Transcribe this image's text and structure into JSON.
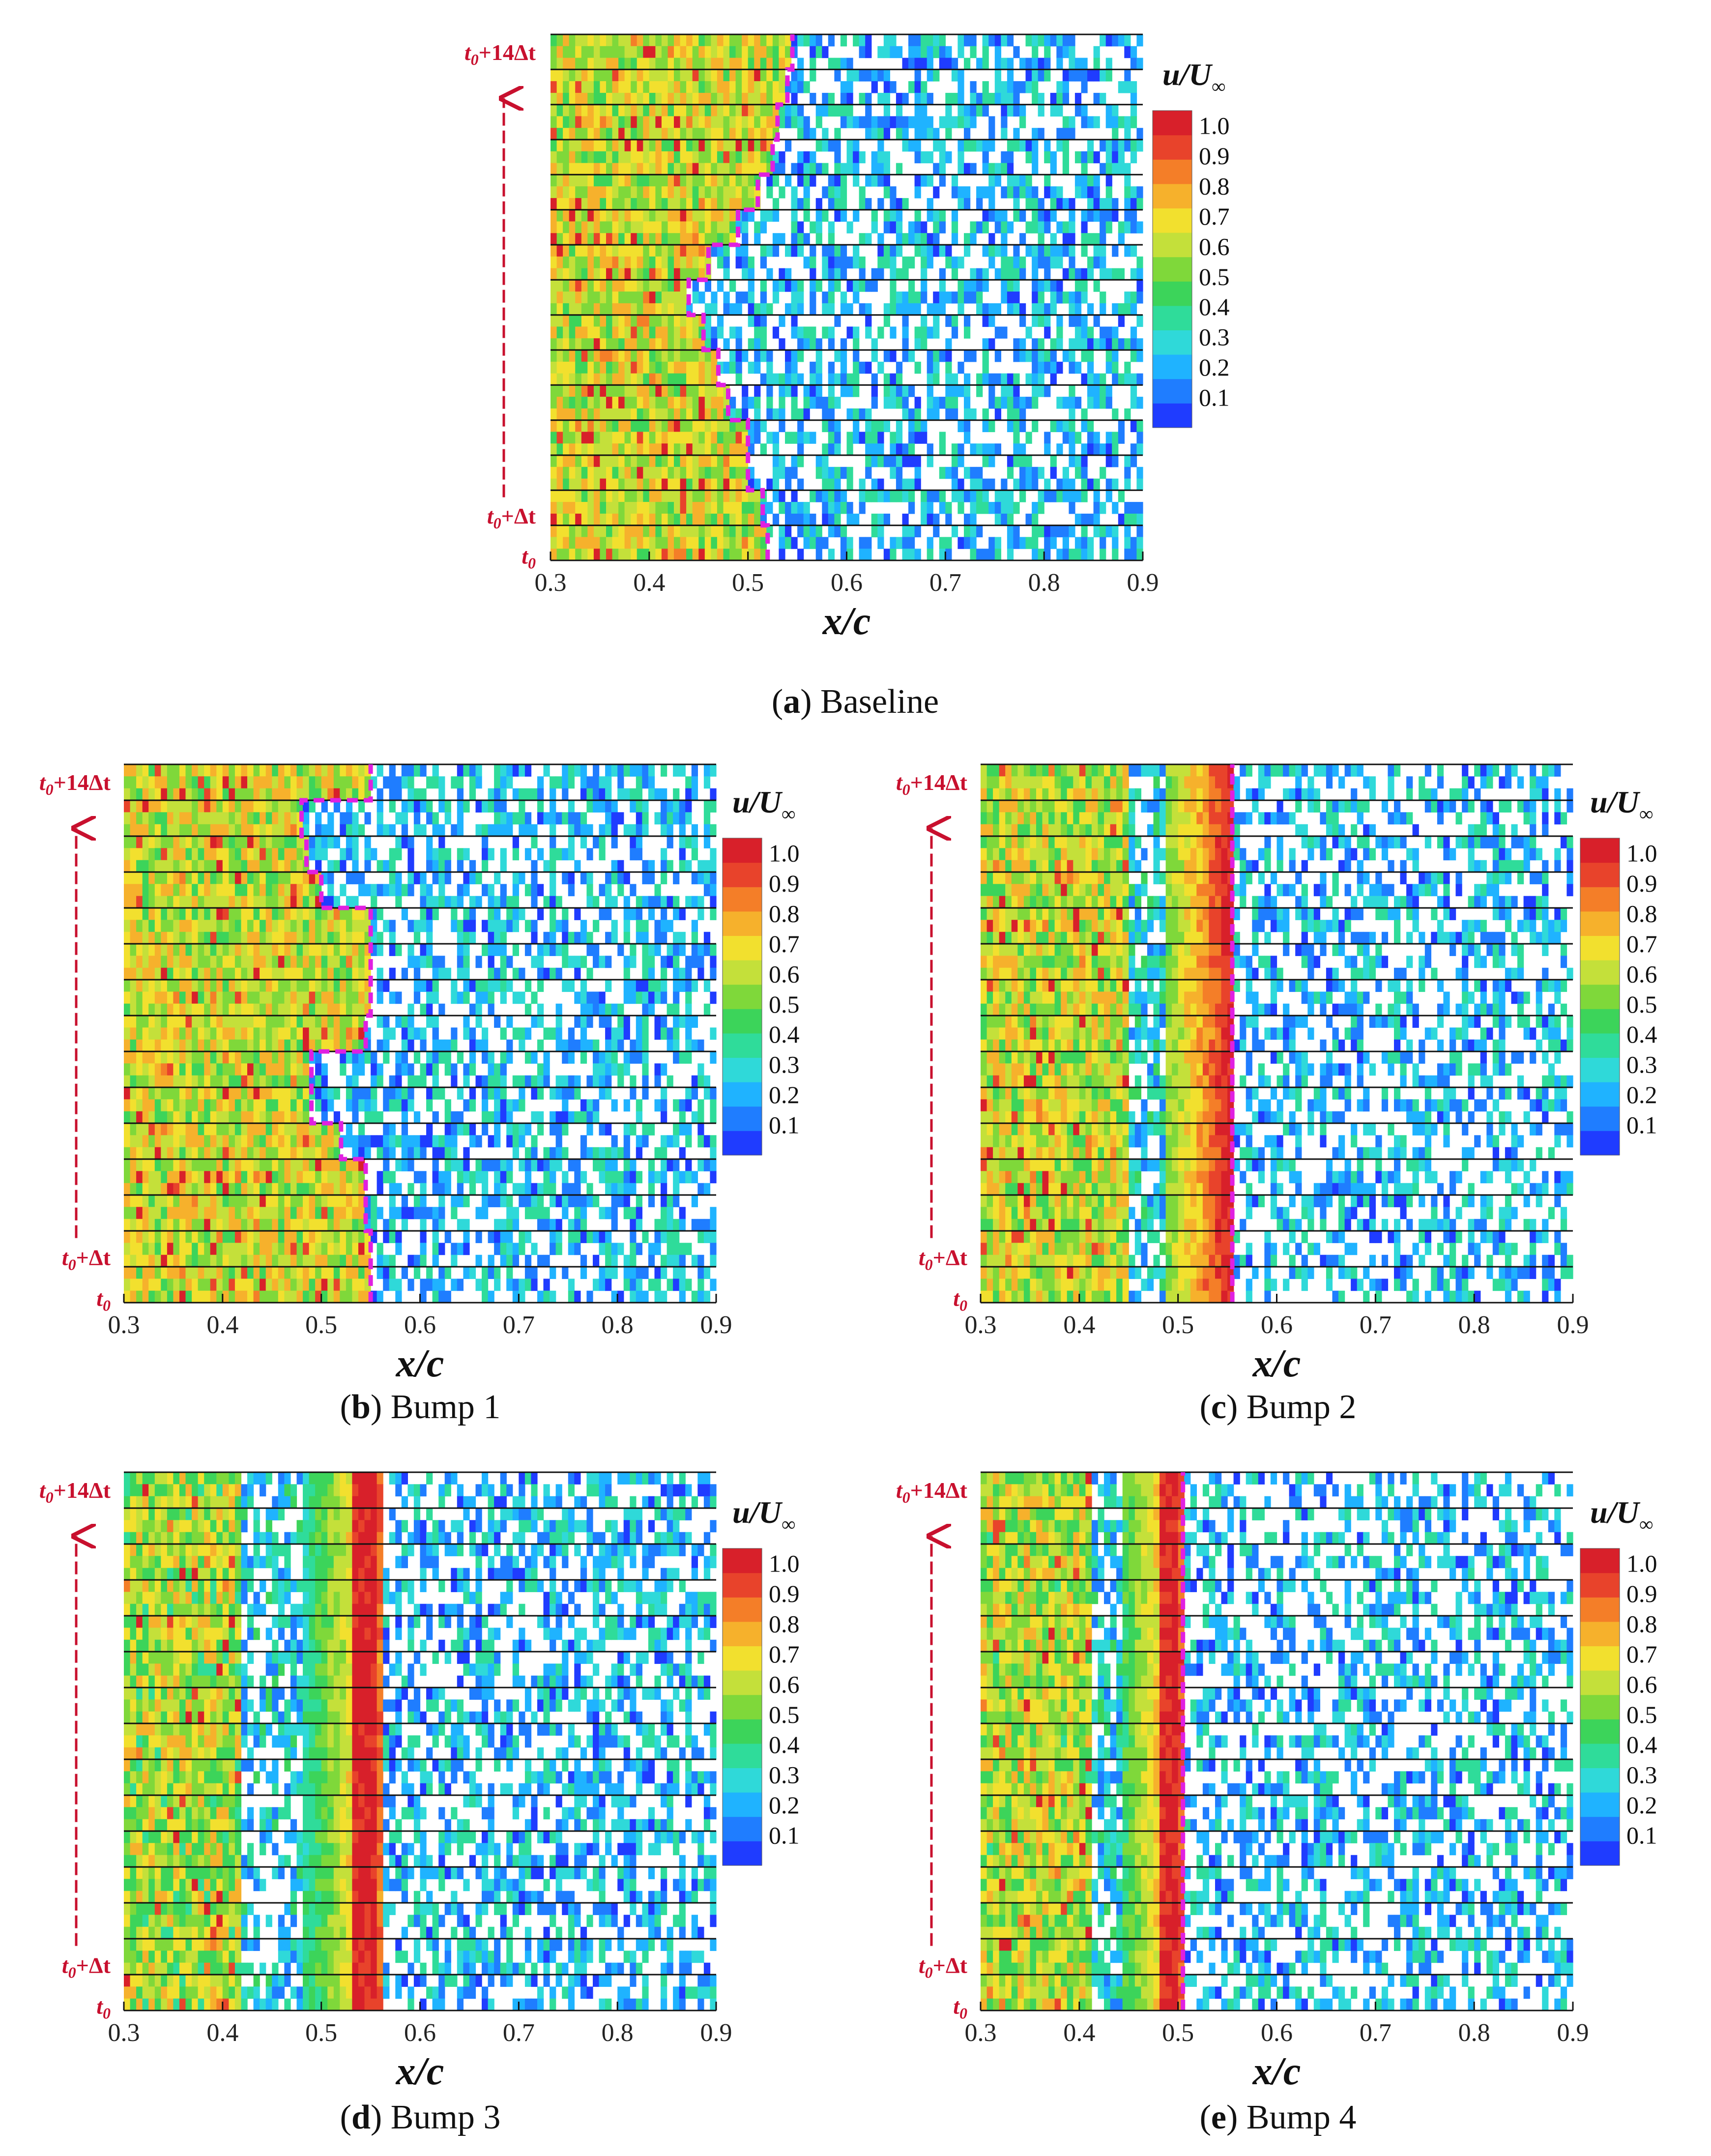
{
  "figure": {
    "panels": [
      {
        "id": "a",
        "letter": "a",
        "caption": "Baseline",
        "front": [
          0.52,
          0.515,
          0.5,
          0.5,
          0.48,
          0.47,
          0.455,
          0.44,
          0.46,
          0.49,
          0.51,
          0.525,
          0.53,
          0.54,
          0.545
        ]
      },
      {
        "id": "b",
        "letter": "b",
        "caption": "Bump 1",
        "front": [
          0.55,
          0.55,
          0.545,
          0.545,
          0.52,
          0.49,
          0.49,
          0.545,
          0.55,
          0.55,
          0.55,
          0.5,
          0.485,
          0.48,
          0.55
        ]
      },
      {
        "id": "c",
        "letter": "c",
        "caption": "Bump 2",
        "front": [
          0.555,
          0.555,
          0.555,
          0.555,
          0.555,
          0.555,
          0.555,
          0.555,
          0.555,
          0.555,
          0.555,
          0.555,
          0.555,
          0.555,
          0.555
        ]
      },
      {
        "id": "d",
        "letter": "d",
        "caption": "Bump 3",
        "front": null
      },
      {
        "id": "e",
        "letter": "e",
        "caption": "Bump 4",
        "front": [
          0.505,
          0.505,
          0.505,
          0.505,
          0.505,
          0.505,
          0.505,
          0.505,
          0.505,
          0.505,
          0.505,
          0.505,
          0.505,
          0.505,
          0.505
        ]
      }
    ]
  },
  "labels": {
    "t0_sub": "0",
    "t0_base": "t",
    "t_plus_1": "+Δt",
    "t_plus_14": "+14Δt",
    "colorbar_title": "u/U",
    "colorbar_sub": "∞",
    "xlabel": "x/c"
  },
  "colors": {
    "accent_red": "#c8102e",
    "front_magenta": "#e020e0",
    "colormap": [
      "#1f3cff",
      "#1f7dff",
      "#1fb3ff",
      "#2fd9d9",
      "#2fdc9a",
      "#3cd45a",
      "#7fd83a",
      "#c4e03a",
      "#f2e02e",
      "#f6b12c",
      "#f47e28",
      "#e8432b",
      "#d8202a"
    ]
  },
  "chart_data": [
    {
      "type": "heatmap",
      "panel": "a",
      "title": "(a) Baseline",
      "xlabel": "x/c",
      "xlim": [
        0.3,
        0.9
      ],
      "xticks": [
        "0.3",
        "0.4",
        "0.5",
        "0.6",
        "0.7",
        "0.8",
        "0.9"
      ],
      "colorbar": {
        "title": "u/U∞",
        "ticks": [
          "1.0",
          "0.9",
          "0.8",
          "0.7",
          "0.6",
          "0.5",
          "0.4",
          "0.3",
          "0.2",
          "0.1"
        ],
        "range": [
          0.0,
          1.05
        ]
      },
      "time_labels": [
        "t0",
        "t0+Δt",
        "t0+14Δt"
      ],
      "n_strips": 15,
      "separation_front_xc": [
        0.52,
        0.515,
        0.5,
        0.5,
        0.48,
        0.47,
        0.455,
        0.44,
        0.46,
        0.49,
        0.51,
        0.525,
        0.53,
        0.54,
        0.545
      ]
    },
    {
      "type": "heatmap",
      "panel": "b",
      "title": "(b) Bump 1",
      "xlabel": "x/c",
      "xlim": [
        0.3,
        0.9
      ],
      "xticks": [
        "0.3",
        "0.4",
        "0.5",
        "0.6",
        "0.7",
        "0.8",
        "0.9"
      ],
      "colorbar": {
        "title": "u/U∞",
        "ticks": [
          "1.0",
          "0.9",
          "0.8",
          "0.7",
          "0.6",
          "0.5",
          "0.4",
          "0.3",
          "0.2",
          "0.1"
        ],
        "range": [
          0.0,
          1.05
        ]
      },
      "time_labels": [
        "t0",
        "t0+Δt",
        "t0+14Δt"
      ],
      "n_strips": 15,
      "separation_front_xc": [
        0.55,
        0.55,
        0.545,
        0.545,
        0.52,
        0.49,
        0.49,
        0.545,
        0.55,
        0.55,
        0.55,
        0.5,
        0.485,
        0.48,
        0.55
      ]
    },
    {
      "type": "heatmap",
      "panel": "c",
      "title": "(c) Bump 2",
      "xlabel": "x/c",
      "xlim": [
        0.3,
        0.9
      ],
      "xticks": [
        "0.3",
        "0.4",
        "0.5",
        "0.6",
        "0.7",
        "0.8",
        "0.9"
      ],
      "colorbar": {
        "title": "u/U∞",
        "ticks": [
          "1.0",
          "0.9",
          "0.8",
          "0.7",
          "0.6",
          "0.5",
          "0.4",
          "0.3",
          "0.2",
          "0.1"
        ],
        "range": [
          0.0,
          1.05
        ]
      },
      "time_labels": [
        "t0",
        "t0+Δt",
        "t0+14Δt"
      ],
      "n_strips": 15,
      "separation_front_xc": 0.555
    },
    {
      "type": "heatmap",
      "panel": "d",
      "title": "(d) Bump 3",
      "xlabel": "x/c",
      "xlim": [
        0.3,
        0.9
      ],
      "xticks": [
        "0.3",
        "0.4",
        "0.5",
        "0.6",
        "0.7",
        "0.8",
        "0.9"
      ],
      "colorbar": {
        "title": "u/U∞",
        "ticks": [
          "1.0",
          "0.9",
          "0.8",
          "0.7",
          "0.6",
          "0.5",
          "0.4",
          "0.3",
          "0.2",
          "0.1"
        ],
        "range": [
          0.0,
          1.05
        ]
      },
      "time_labels": [
        "t0",
        "t0+Δt",
        "t0+14Δt"
      ],
      "n_strips": 15,
      "high_speed_band_xc": 0.55
    },
    {
      "type": "heatmap",
      "panel": "e",
      "title": "(e) Bump 4",
      "xlabel": "x/c",
      "xlim": [
        0.3,
        0.9
      ],
      "xticks": [
        "0.3",
        "0.4",
        "0.5",
        "0.6",
        "0.7",
        "0.8",
        "0.9"
      ],
      "colorbar": {
        "title": "u/U∞",
        "ticks": [
          "1.0",
          "0.9",
          "0.8",
          "0.7",
          "0.6",
          "0.5",
          "0.4",
          "0.3",
          "0.2",
          "0.1"
        ],
        "range": [
          0.0,
          1.05
        ]
      },
      "time_labels": [
        "t0",
        "t0+Δt",
        "t0+14Δt"
      ],
      "n_strips": 15,
      "separation_front_xc": 0.505
    }
  ]
}
